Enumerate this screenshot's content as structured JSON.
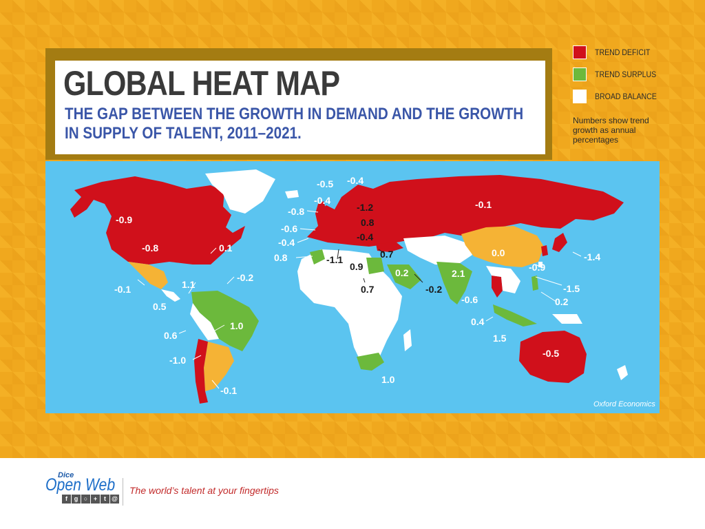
{
  "header": {
    "title": "GLOBAL HEAT MAP",
    "subtitle_line1": "THE GAP BETWEEN THE GROWTH IN DEMAND AND THE GROWTH",
    "subtitle_line2": "IN SUPPLY OF TALENT, 2011–2021."
  },
  "legend": {
    "items": [
      {
        "label": "TREND DEFICIT",
        "color": "#d0101b"
      },
      {
        "label": "TREND SURPLUS",
        "color": "#6cb93c"
      },
      {
        "label": "BROAD BALANCE",
        "color": "#ffffff"
      }
    ],
    "note": "Numbers show trend growth as annual percentages"
  },
  "map": {
    "ocean_color": "#5bc4f0",
    "source": "Oxford Economics",
    "labels": [
      {
        "text": "-0.9",
        "color": "white"
      },
      {
        "text": "-0.8",
        "color": "white"
      },
      {
        "text": "0.1",
        "color": "white"
      },
      {
        "text": "-0.1",
        "color": "white"
      },
      {
        "text": "1.1",
        "color": "white"
      },
      {
        "text": "-0.2",
        "color": "white"
      },
      {
        "text": "0.5",
        "color": "white"
      },
      {
        "text": "1.0",
        "color": "white"
      },
      {
        "text": "0.6",
        "color": "white"
      },
      {
        "text": "-1.0",
        "color": "white"
      },
      {
        "text": "-0.1",
        "color": "white"
      },
      {
        "text": "-0.5",
        "color": "white"
      },
      {
        "text": "-0.4",
        "color": "white"
      },
      {
        "text": "-0.4",
        "color": "white"
      },
      {
        "text": "-0.8",
        "color": "white"
      },
      {
        "text": "-1.2",
        "color": "dark"
      },
      {
        "text": "0.8",
        "color": "dark"
      },
      {
        "text": "-0.6",
        "color": "white"
      },
      {
        "text": "-0.4",
        "color": "dark"
      },
      {
        "text": "-0.4",
        "color": "white"
      },
      {
        "text": "0.8",
        "color": "white"
      },
      {
        "text": "-1.1",
        "color": "dark"
      },
      {
        "text": "0.9",
        "color": "dark"
      },
      {
        "text": "0.7",
        "color": "dark"
      },
      {
        "text": "0.2",
        "color": "white"
      },
      {
        "text": "0.7",
        "color": "dark"
      },
      {
        "text": "-0.2",
        "color": "dark"
      },
      {
        "text": "2.1",
        "color": "white"
      },
      {
        "text": "-0.1",
        "color": "white"
      },
      {
        "text": "0.0",
        "color": "white"
      },
      {
        "text": "-1.4",
        "color": "white"
      },
      {
        "text": "-0.9",
        "color": "white"
      },
      {
        "text": "-1.5",
        "color": "white"
      },
      {
        "text": "0.2",
        "color": "white"
      },
      {
        "text": "-0.6",
        "color": "white"
      },
      {
        "text": "0.4",
        "color": "white"
      },
      {
        "text": "1.5",
        "color": "white"
      },
      {
        "text": "-0.5",
        "color": "white"
      },
      {
        "text": "1.0",
        "color": "white"
      }
    ]
  },
  "footer": {
    "brand_small": "Dice",
    "brand_main": "Open Web",
    "social_icons": [
      "facebook-icon",
      "google-icon",
      "rss-icon",
      "googleplus-icon",
      "twitter-icon",
      "email-icon"
    ],
    "tagline": "The world’s talent at your fingertips"
  }
}
